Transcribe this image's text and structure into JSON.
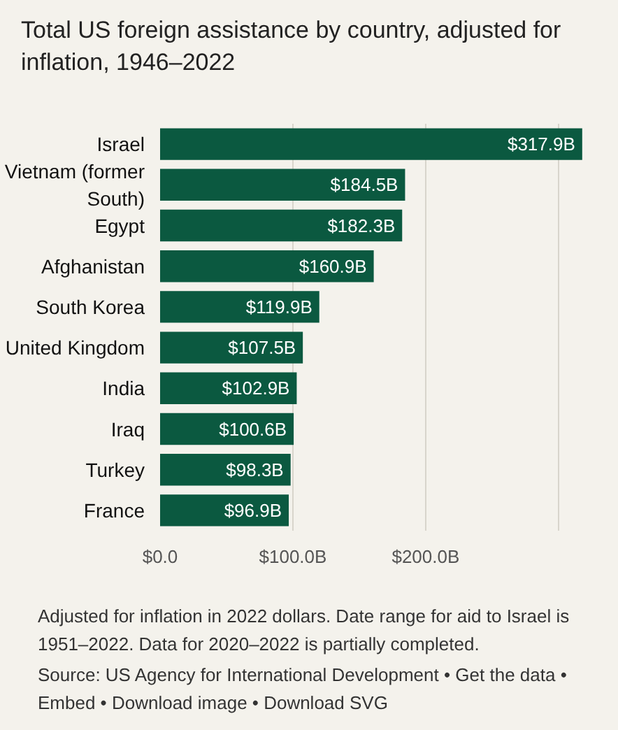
{
  "chart_data": {
    "type": "bar",
    "orientation": "horizontal",
    "title": "Total US foreign assistance by country, adjusted for inflation, 1946–2022",
    "categories": [
      "Israel",
      "Vietnam (former South)",
      "Egypt",
      "Afghanistan",
      "South Korea",
      "United Kingdom",
      "India",
      "Iraq",
      "Turkey",
      "France"
    ],
    "values": [
      317.9,
      184.5,
      182.3,
      160.9,
      119.9,
      107.5,
      102.9,
      100.6,
      98.3,
      96.9
    ],
    "value_labels": [
      "$317.9B",
      "$184.5B",
      "$182.3B",
      "$160.9B",
      "$119.9B",
      "$107.5B",
      "$102.9B",
      "$100.6B",
      "$98.3B",
      "$96.9B"
    ],
    "color": "#0b5940",
    "xlim": [
      0,
      318
    ],
    "xticks": [
      {
        "value": 0,
        "label": "$0.0"
      },
      {
        "value": 100,
        "label": "$100.0B"
      },
      {
        "value": 200,
        "label": "$200.0B"
      },
      {
        "value": 300,
        "label": null
      }
    ],
    "grid": "x",
    "annotations": [
      "Adjusted for inflation in 2022 dollars. Date range for aid to Israel is 1951–2022. Data for 2020–2022 is partially completed.",
      "Source: US Agency for International Development • Get the data • Embed • Download image • Download SVG"
    ]
  }
}
